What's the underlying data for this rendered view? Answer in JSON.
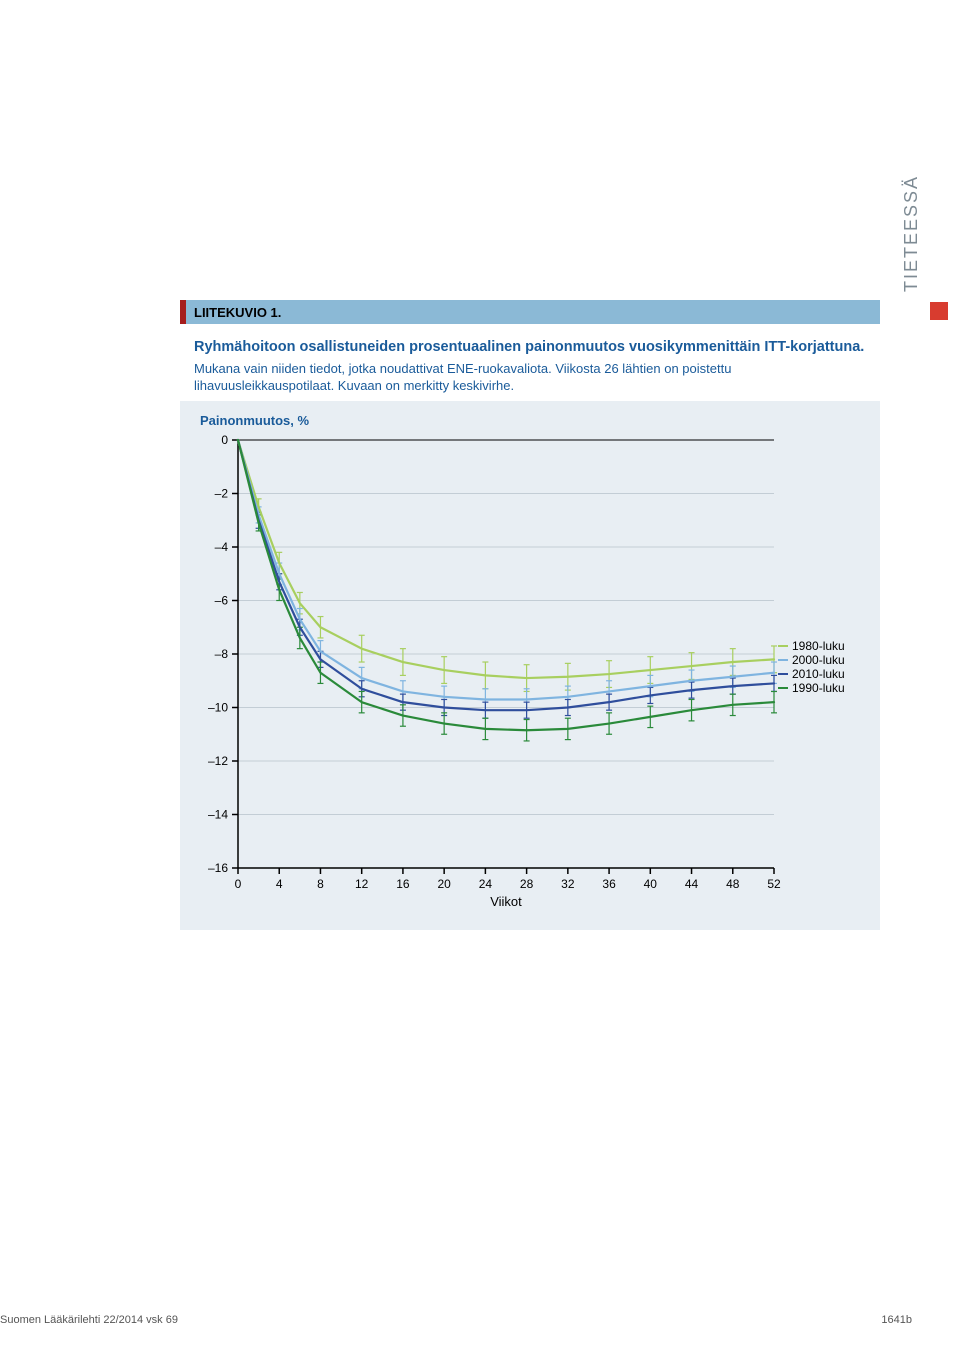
{
  "side_tab": {
    "text": "TIETEESSÄ",
    "text_color": "#7e8b94",
    "square_color": "#d83c2f"
  },
  "figure": {
    "header_label": "LIITEKUVIO 1.",
    "header_bg": "#8bb9d6",
    "header_red_bar": "#a51d1d",
    "title": "Ryhmähoitoon osallistuneiden prosentuaalinen painonmuutos vuosikymmenittäin ITT-korjattuna.",
    "description": "Mukana vain niiden tiedot, jotka noudattivat ENE-ruokavaliota. Viikosta 26 lähtien on poistettu lihavuusleikkauspotilaat. Kuvaan on merkitty keskivirhe.",
    "title_color": "#1a5b9a",
    "panel_bg": "#e8eef3"
  },
  "chart": {
    "type": "line",
    "ylabel": "Painonmuutos, %",
    "xlabel": "Viikot",
    "xlim": [
      0,
      52
    ],
    "ylim": [
      -16,
      0
    ],
    "xticks": [
      0,
      4,
      8,
      12,
      16,
      20,
      24,
      28,
      32,
      36,
      40,
      44,
      48,
      52
    ],
    "yticks": [
      0,
      -2,
      -4,
      -6,
      -8,
      -10,
      -12,
      -14,
      -16
    ],
    "grid_color": "#b7c2cb",
    "axis_color": "#000000",
    "tick_font_size": 12,
    "label_font_size": 13,
    "tick_color": "#000000",
    "line_width": 2.2,
    "err_bar_width": 1.2,
    "series": [
      {
        "name": "1980-luku",
        "color": "#a8cf5f",
        "points": [
          {
            "x": 0,
            "y": 0,
            "e": 0
          },
          {
            "x": 2,
            "y": -2.5,
            "e": 0.3
          },
          {
            "x": 4,
            "y": -4.6,
            "e": 0.4
          },
          {
            "x": 6,
            "y": -6.1,
            "e": 0.4
          },
          {
            "x": 8,
            "y": -7.0,
            "e": 0.4
          },
          {
            "x": 12,
            "y": -7.8,
            "e": 0.5
          },
          {
            "x": 16,
            "y": -8.3,
            "e": 0.5
          },
          {
            "x": 20,
            "y": -8.6,
            "e": 0.5
          },
          {
            "x": 24,
            "y": -8.8,
            "e": 0.5
          },
          {
            "x": 28,
            "y": -8.9,
            "e": 0.5
          },
          {
            "x": 32,
            "y": -8.85,
            "e": 0.5
          },
          {
            "x": 36,
            "y": -8.75,
            "e": 0.5
          },
          {
            "x": 40,
            "y": -8.6,
            "e": 0.5
          },
          {
            "x": 44,
            "y": -8.45,
            "e": 0.5
          },
          {
            "x": 48,
            "y": -8.3,
            "e": 0.5
          },
          {
            "x": 52,
            "y": -8.2,
            "e": 0.5
          }
        ]
      },
      {
        "name": "2000-luku",
        "color": "#7fb4e0",
        "points": [
          {
            "x": 0,
            "y": 0,
            "e": 0
          },
          {
            "x": 2,
            "y": -2.8,
            "e": 0.3
          },
          {
            "x": 4,
            "y": -5.0,
            "e": 0.4
          },
          {
            "x": 6,
            "y": -6.7,
            "e": 0.4
          },
          {
            "x": 8,
            "y": -7.9,
            "e": 0.4
          },
          {
            "x": 12,
            "y": -8.9,
            "e": 0.4
          },
          {
            "x": 16,
            "y": -9.4,
            "e": 0.4
          },
          {
            "x": 20,
            "y": -9.6,
            "e": 0.4
          },
          {
            "x": 24,
            "y": -9.7,
            "e": 0.4
          },
          {
            "x": 28,
            "y": -9.7,
            "e": 0.4
          },
          {
            "x": 32,
            "y": -9.6,
            "e": 0.4
          },
          {
            "x": 36,
            "y": -9.4,
            "e": 0.4
          },
          {
            "x": 40,
            "y": -9.2,
            "e": 0.4
          },
          {
            "x": 44,
            "y": -9.0,
            "e": 0.4
          },
          {
            "x": 48,
            "y": -8.85,
            "e": 0.4
          },
          {
            "x": 52,
            "y": -8.7,
            "e": 0.4
          }
        ]
      },
      {
        "name": "2010-luku",
        "color": "#2f4e9c",
        "points": [
          {
            "x": 0,
            "y": 0,
            "e": 0
          },
          {
            "x": 2,
            "y": -3.0,
            "e": 0.3
          },
          {
            "x": 4,
            "y": -5.3,
            "e": 0.3
          },
          {
            "x": 6,
            "y": -7.0,
            "e": 0.3
          },
          {
            "x": 8,
            "y": -8.2,
            "e": 0.3
          },
          {
            "x": 12,
            "y": -9.3,
            "e": 0.3
          },
          {
            "x": 16,
            "y": -9.8,
            "e": 0.3
          },
          {
            "x": 20,
            "y": -10.0,
            "e": 0.3
          },
          {
            "x": 24,
            "y": -10.1,
            "e": 0.3
          },
          {
            "x": 28,
            "y": -10.1,
            "e": 0.3
          },
          {
            "x": 32,
            "y": -10.0,
            "e": 0.3
          },
          {
            "x": 36,
            "y": -9.8,
            "e": 0.3
          },
          {
            "x": 40,
            "y": -9.55,
            "e": 0.3
          },
          {
            "x": 44,
            "y": -9.35,
            "e": 0.3
          },
          {
            "x": 48,
            "y": -9.2,
            "e": 0.3
          },
          {
            "x": 52,
            "y": -9.1,
            "e": 0.3
          }
        ]
      },
      {
        "name": "1990-luku",
        "color": "#2a8a3a",
        "points": [
          {
            "x": 0,
            "y": 0,
            "e": 0
          },
          {
            "x": 2,
            "y": -3.1,
            "e": 0.3
          },
          {
            "x": 4,
            "y": -5.6,
            "e": 0.4
          },
          {
            "x": 6,
            "y": -7.4,
            "e": 0.4
          },
          {
            "x": 8,
            "y": -8.7,
            "e": 0.4
          },
          {
            "x": 12,
            "y": -9.8,
            "e": 0.4
          },
          {
            "x": 16,
            "y": -10.3,
            "e": 0.4
          },
          {
            "x": 20,
            "y": -10.6,
            "e": 0.4
          },
          {
            "x": 24,
            "y": -10.8,
            "e": 0.4
          },
          {
            "x": 28,
            "y": -10.85,
            "e": 0.4
          },
          {
            "x": 32,
            "y": -10.8,
            "e": 0.4
          },
          {
            "x": 36,
            "y": -10.6,
            "e": 0.4
          },
          {
            "x": 40,
            "y": -10.35,
            "e": 0.4
          },
          {
            "x": 44,
            "y": -10.1,
            "e": 0.4
          },
          {
            "x": 48,
            "y": -9.9,
            "e": 0.4
          },
          {
            "x": 52,
            "y": -9.8,
            "e": 0.4
          }
        ]
      }
    ],
    "legend_order": [
      "1980-luku",
      "2000-luku",
      "2010-luku",
      "1990-luku"
    ],
    "legend_font_size": 12,
    "legend_color": "#000000"
  },
  "footer": {
    "left": "Suomen Lääkärilehti 22/2014 vsk 69",
    "right": "1641b"
  }
}
